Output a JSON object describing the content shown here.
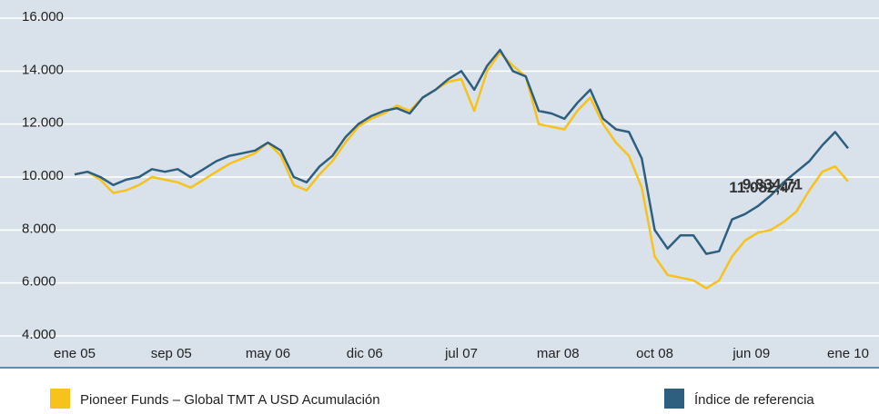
{
  "chart_data": {
    "type": "line",
    "x": [
      0,
      1,
      2,
      3,
      4,
      5,
      6,
      7,
      8,
      9,
      10,
      11,
      12,
      13,
      14,
      15,
      16,
      17,
      18,
      19,
      20,
      21,
      22,
      23,
      24,
      25,
      26,
      27,
      28,
      29,
      30,
      31,
      32,
      33,
      34,
      35,
      36,
      37,
      38,
      39,
      40,
      41,
      42,
      43,
      44,
      45,
      46,
      47,
      48,
      49,
      50,
      51,
      52,
      53,
      54,
      55,
      56,
      57,
      58,
      59,
      60
    ],
    "xlim": [
      0,
      60
    ],
    "xticks": [
      {
        "value": 0,
        "label": "ene 05"
      },
      {
        "value": 7.5,
        "label": "sep 05"
      },
      {
        "value": 15,
        "label": "may 06"
      },
      {
        "value": 22.5,
        "label": "dic 06"
      },
      {
        "value": 30,
        "label": "jul 07"
      },
      {
        "value": 37.5,
        "label": "mar 08"
      },
      {
        "value": 45,
        "label": "oct 08"
      },
      {
        "value": 52.5,
        "label": "jun 09"
      },
      {
        "value": 60,
        "label": "ene 10"
      }
    ],
    "ylim": [
      4000,
      16000
    ],
    "yticks": [
      {
        "value": 4000,
        "label": "4.000"
      },
      {
        "value": 6000,
        "label": "6.000"
      },
      {
        "value": 8000,
        "label": "8.000"
      },
      {
        "value": 10000,
        "label": "10.000"
      },
      {
        "value": 12000,
        "label": "12.000"
      },
      {
        "value": 14000,
        "label": "14.000"
      },
      {
        "value": 16000,
        "label": "16.000"
      }
    ],
    "grid": true,
    "series": [
      {
        "name": "Pioneer Funds – Global TMT  A USD Acumulación",
        "color": "#f6c21c",
        "values": [
          10100,
          10200,
          9900,
          9400,
          9500,
          9700,
          10000,
          9900,
          9800,
          9600,
          9900,
          10200,
          10500,
          10700,
          10900,
          11300,
          10800,
          9700,
          9500,
          10100,
          10600,
          11300,
          11900,
          12200,
          12400,
          12700,
          12500,
          13000,
          13300,
          13600,
          13700,
          12500,
          14000,
          14700,
          14200,
          13800,
          12000,
          11900,
          11800,
          12500,
          13000,
          12000,
          11300,
          10800,
          9600,
          7000,
          6300,
          6200,
          6100,
          5800,
          6100,
          7000,
          7600,
          7900,
          8000,
          8300,
          8700,
          9500,
          10200,
          10400,
          9834.71
        ],
        "value_label": "9.834,71"
      },
      {
        "name": "Índice de referencia",
        "color": "#2e5f7f",
        "values": [
          10100,
          10200,
          10000,
          9700,
          9900,
          10000,
          10300,
          10200,
          10300,
          10000,
          10300,
          10600,
          10800,
          10900,
          11000,
          11300,
          11000,
          10000,
          9800,
          10400,
          10800,
          11500,
          12000,
          12300,
          12500,
          12600,
          12400,
          13000,
          13300,
          13700,
          14000,
          13300,
          14200,
          14800,
          14000,
          13800,
          12500,
          12400,
          12200,
          12800,
          13300,
          12200,
          11800,
          11700,
          10700,
          8000,
          7300,
          7800,
          7800,
          7100,
          7200,
          8400,
          8600,
          8900,
          9300,
          9800,
          10200,
          10600,
          11200,
          11700,
          11082.47
        ],
        "value_label": "11.082,47"
      }
    ]
  }
}
